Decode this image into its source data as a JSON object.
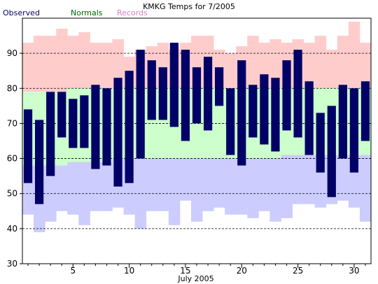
{
  "colors": {
    "observed": "#000066",
    "normals": "#006600",
    "records": "#e080c0",
    "records_fill": "#ffcccc",
    "normals_fill": "#ccffcc",
    "below_fill": "#ccccff"
  },
  "chart_data": {
    "type": "bar",
    "title": "KMKG Temps for 7/2005",
    "xlabel": "July 2005",
    "ylabel": "",
    "ylim": [
      30,
      100
    ],
    "xlim": [
      0.5,
      31.5
    ],
    "grid": "dashed horizontal at y = 40, 50, 60, 70, 80, 90",
    "legend_position": "top-left",
    "legend": [
      "Observed",
      "Normals",
      "Records"
    ],
    "x_ticks": [
      5,
      10,
      15,
      20,
      25,
      30
    ],
    "y_ticks": [
      30,
      40,
      50,
      60,
      70,
      80,
      90
    ],
    "days": [
      1,
      2,
      3,
      4,
      5,
      6,
      7,
      8,
      9,
      10,
      11,
      12,
      13,
      14,
      15,
      16,
      17,
      18,
      19,
      20,
      21,
      22,
      23,
      24,
      25,
      26,
      27,
      28,
      29,
      30,
      31
    ],
    "series": [
      {
        "name": "Observed",
        "type": "range-bar",
        "high": [
          74,
          71,
          79,
          79,
          77,
          78,
          81,
          80,
          83,
          85,
          91,
          88,
          86,
          93,
          91,
          86,
          89,
          86,
          80,
          88,
          81,
          84,
          83,
          88,
          91,
          82,
          73,
          75,
          81,
          80,
          82
        ],
        "low": [
          53,
          47,
          55,
          66,
          63,
          63,
          57,
          58,
          52,
          53,
          60,
          71,
          71,
          69,
          65,
          70,
          68,
          75,
          61,
          58,
          66,
          64,
          62,
          68,
          66,
          61,
          56,
          49,
          60,
          56,
          65
        ]
      },
      {
        "name": "Normals",
        "type": "range-band",
        "high": [
          79,
          79,
          79,
          79,
          80,
          80,
          80,
          80,
          80,
          80,
          80,
          80,
          80,
          80,
          80,
          80,
          80,
          80,
          80,
          80,
          80,
          80,
          80,
          80,
          80,
          80,
          80,
          80,
          80,
          80,
          80
        ],
        "low": [
          58,
          58,
          58,
          58,
          59,
          59,
          59,
          59,
          60,
          60,
          60,
          60,
          60,
          60,
          60,
          60,
          60,
          60,
          60,
          60,
          60,
          60,
          60,
          61,
          61,
          61,
          61,
          61,
          61,
          61,
          61
        ]
      },
      {
        "name": "Records",
        "type": "range-band",
        "high": [
          93,
          95,
          95,
          97,
          95,
          96,
          93,
          93,
          94,
          89,
          91,
          92,
          93,
          91,
          93,
          95,
          95,
          91,
          90,
          92,
          95,
          93,
          94,
          93,
          94,
          93,
          95,
          91,
          95,
          99,
          93
        ],
        "low": [
          44,
          39,
          42,
          45,
          44,
          41,
          45,
          45,
          46,
          44,
          40,
          45,
          45,
          41,
          48,
          42,
          45,
          46,
          44,
          44,
          43,
          45,
          42,
          43,
          47,
          47,
          46,
          47,
          48,
          46,
          42
        ]
      }
    ]
  }
}
